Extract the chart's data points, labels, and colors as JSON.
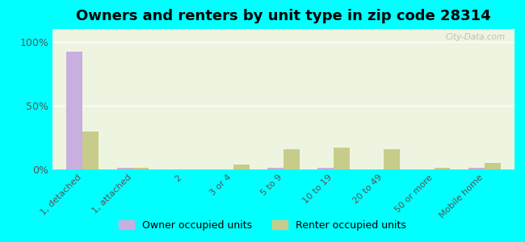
{
  "title": "Owners and renters by unit type in zip code 28314",
  "categories": [
    "1, detached",
    "1, attached",
    "2",
    "3 or 4",
    "5 to 9",
    "10 to 19",
    "20 to 49",
    "50 or more",
    "Mobile home"
  ],
  "owner_values": [
    92,
    1,
    0,
    0,
    1,
    1,
    0,
    0,
    1
  ],
  "renter_values": [
    30,
    1,
    0,
    4,
    16,
    17,
    16,
    1,
    5
  ],
  "owner_color": "#c9aee0",
  "renter_color": "#c8cc8a",
  "background_color_plot_top": "#e8f5d8",
  "background_color_fig": "#00ffff",
  "yticks": [
    0,
    50,
    100
  ],
  "ytick_labels": [
    "0%",
    "50%",
    "100%"
  ],
  "ylim": [
    0,
    110
  ],
  "bar_width": 0.32,
  "title_fontsize": 13,
  "legend_owner": "Owner occupied units",
  "legend_renter": "Renter occupied units",
  "watermark": "City-Data.com",
  "fig_width": 6.5,
  "fig_height": 3.0
}
